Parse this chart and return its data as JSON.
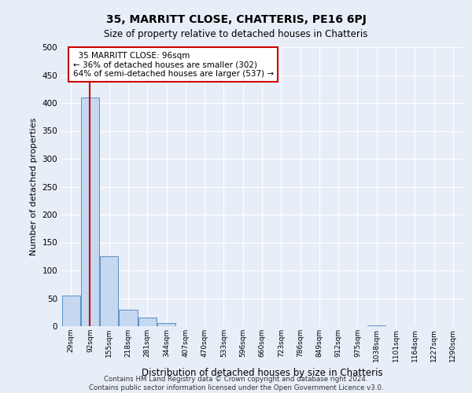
{
  "title": "35, MARRITT CLOSE, CHATTERIS, PE16 6PJ",
  "subtitle": "Size of property relative to detached houses in Chatteris",
  "xlabel": "Distribution of detached houses by size in Chatteris",
  "ylabel": "Number of detached properties",
  "footer_line1": "Contains HM Land Registry data © Crown copyright and database right 2024.",
  "footer_line2": "Contains public sector information licensed under the Open Government Licence v3.0.",
  "bin_labels": [
    "29sqm",
    "92sqm",
    "155sqm",
    "218sqm",
    "281sqm",
    "344sqm",
    "407sqm",
    "470sqm",
    "533sqm",
    "596sqm",
    "660sqm",
    "723sqm",
    "786sqm",
    "849sqm",
    "912sqm",
    "975sqm",
    "1038sqm",
    "1101sqm",
    "1164sqm",
    "1227sqm",
    "1290sqm"
  ],
  "bar_values": [
    55,
    410,
    125,
    30,
    15,
    5,
    0,
    0,
    0,
    0,
    0,
    0,
    0,
    0,
    0,
    0,
    2,
    0,
    0,
    0,
    0
  ],
  "bar_color": "#c5d8f0",
  "bar_edge_color": "#5b8ec4",
  "ylim": [
    0,
    500
  ],
  "yticks": [
    0,
    50,
    100,
    150,
    200,
    250,
    300,
    350,
    400,
    450,
    500
  ],
  "property_bin_index": 1,
  "red_line_color": "#cc0000",
  "annotation_text": "  35 MARRITT CLOSE: 96sqm\n← 36% of detached houses are smaller (302)\n64% of semi-detached houses are larger (537) →",
  "annotation_box_color": "#ffffff",
  "annotation_box_edge_color": "#cc0000",
  "background_color": "#e8eef8",
  "grid_color": "#ffffff",
  "title_fontsize": 10,
  "subtitle_fontsize": 8.5,
  "ylabel_fontsize": 8,
  "xlabel_fontsize": 8.5
}
